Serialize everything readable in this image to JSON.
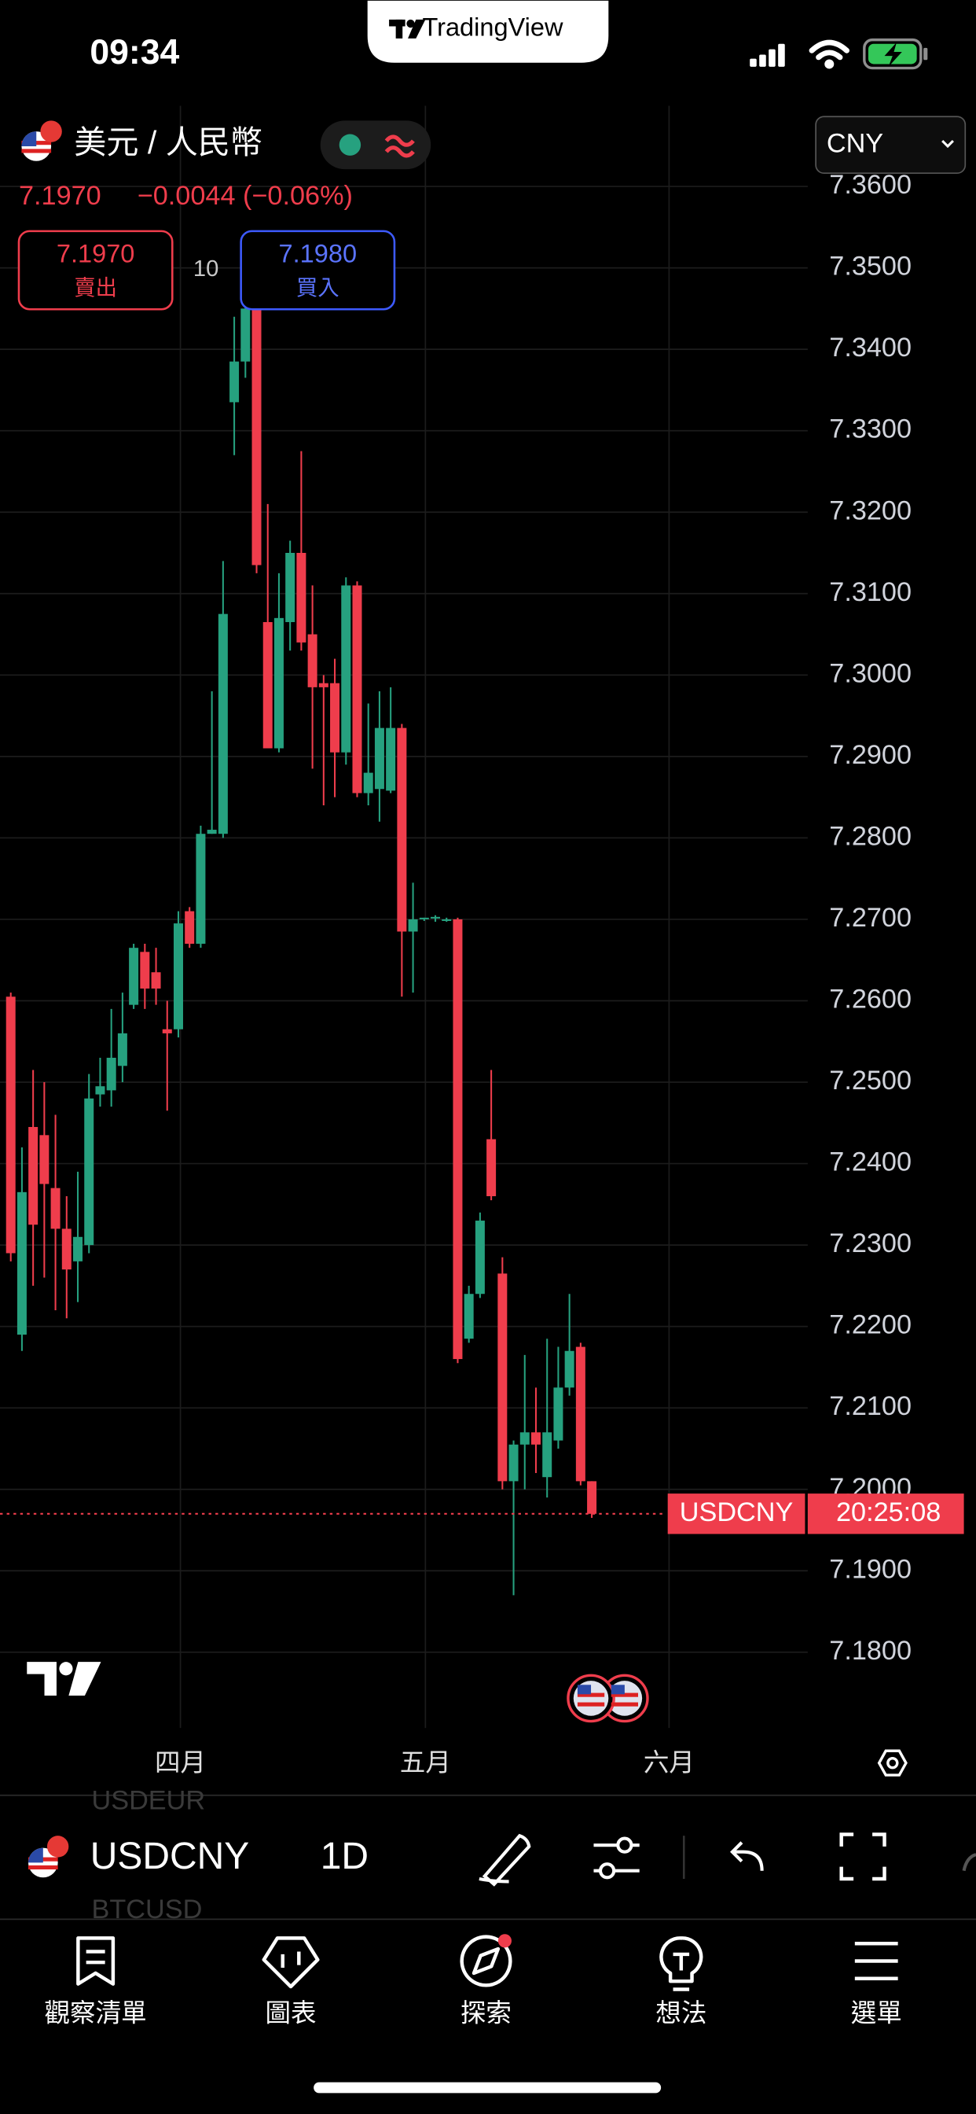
{
  "status_bar": {
    "time": "09:34",
    "app_label": "TradingView"
  },
  "header": {
    "symbol_name": "美元 / 人民幣",
    "price": "7.1970",
    "change": "−0.0044 (−0.06%)",
    "sell": {
      "price": "7.1970",
      "label": "賣出"
    },
    "spread": "10",
    "buy": {
      "price": "7.1980",
      "label": "買入"
    },
    "currency": "CNY"
  },
  "chart_data": {
    "type": "candlestick",
    "up_color": "#26a17f",
    "down_color": "#ef3d4c",
    "ylim": [
      7.1707,
      7.3699
    ],
    "yticks": [
      {
        "value": 7.18,
        "label": "7.1800"
      },
      {
        "value": 7.19,
        "label": "7.1900"
      },
      {
        "value": 7.2,
        "label": "7.2000"
      },
      {
        "value": 7.21,
        "label": "7.2100"
      },
      {
        "value": 7.22,
        "label": "7.2200"
      },
      {
        "value": 7.23,
        "label": "7.2300"
      },
      {
        "value": 7.24,
        "label": "7.2400"
      },
      {
        "value": 7.25,
        "label": "7.2500"
      },
      {
        "value": 7.26,
        "label": "7.2600"
      },
      {
        "value": 7.27,
        "label": "7.2700"
      },
      {
        "value": 7.28,
        "label": "7.2800"
      },
      {
        "value": 7.29,
        "label": "7.2900"
      },
      {
        "value": 7.3,
        "label": "7.3000"
      },
      {
        "value": 7.31,
        "label": "7.3100"
      },
      {
        "value": 7.32,
        "label": "7.3200"
      },
      {
        "value": 7.33,
        "label": "7.3300"
      },
      {
        "value": 7.34,
        "label": "7.3400"
      },
      {
        "value": 7.35,
        "label": "7.3500"
      },
      {
        "value": 7.36,
        "label": "7.3600"
      }
    ],
    "x_labels": [
      "四月",
      "五月",
      "六月"
    ],
    "open": [
      7.2605,
      7.219,
      7.2445,
      7.2435,
      7.237,
      7.232,
      7.228,
      7.23,
      7.2485,
      7.249,
      7.252,
      7.2595,
      7.266,
      7.2635,
      7.2565,
      7.2565,
      7.271,
      7.267,
      7.2805,
      7.2805,
      7.3335,
      7.3385,
      7.345,
      7.3065,
      7.291,
      7.3065,
      7.315,
      7.305,
      7.299,
      7.299,
      7.2905,
      7.311,
      7.2855,
      7.286,
      7.2858,
      7.2935,
      7.2685,
      7.27,
      7.2701,
      7.2699,
      7.27,
      7.2185,
      7.224,
      7.243,
      7.2265,
      7.201,
      7.2055,
      7.207,
      7.2015,
      7.206,
      7.2125,
      7.2175,
      7.201
    ],
    "high": [
      7.261,
      7.242,
      7.2515,
      7.25,
      7.246,
      7.236,
      7.239,
      7.251,
      7.253,
      7.259,
      7.261,
      7.267,
      7.267,
      7.2665,
      7.26,
      7.271,
      7.2715,
      7.2815,
      7.298,
      7.314,
      7.344,
      7.347,
      7.348,
      7.321,
      7.3125,
      7.3165,
      7.3275,
      7.311,
      7.3,
      7.302,
      7.312,
      7.3115,
      7.2965,
      7.298,
      7.2985,
      7.294,
      7.2745,
      7.2702,
      7.2705,
      7.2702,
      7.2702,
      7.225,
      7.234,
      7.2515,
      7.2285,
      7.206,
      7.2165,
      7.2125,
      7.2185,
      7.2175,
      7.224,
      7.218,
      7.201
    ],
    "low": [
      7.228,
      7.217,
      7.225,
      7.226,
      7.222,
      7.221,
      7.223,
      7.229,
      7.247,
      7.247,
      7.25,
      7.259,
      7.259,
      7.2595,
      7.2465,
      7.2555,
      7.2665,
      7.2665,
      7.2805,
      7.28,
      7.327,
      7.3365,
      7.3125,
      7.291,
      7.2905,
      7.303,
      7.303,
      7.2885,
      7.284,
      7.285,
      7.289,
      7.285,
      7.284,
      7.282,
      7.2855,
      7.2605,
      7.261,
      7.2698,
      7.2697,
      7.2697,
      7.2155,
      7.218,
      7.2235,
      7.2355,
      7.2,
      7.187,
      7.2,
      7.202,
      7.199,
      7.205,
      7.2115,
      7.2005,
      7.1965
    ],
    "close": [
      7.229,
      7.2365,
      7.2325,
      7.2375,
      7.232,
      7.227,
      7.231,
      7.248,
      7.2495,
      7.253,
      7.256,
      7.2665,
      7.2615,
      7.2615,
      7.256,
      7.2695,
      7.267,
      7.2805,
      7.281,
      7.3075,
      7.3385,
      7.345,
      7.3135,
      7.291,
      7.307,
      7.315,
      7.304,
      7.2985,
      7.2985,
      7.2905,
      7.311,
      7.2855,
      7.288,
      7.2935,
      7.2935,
      7.2685,
      7.27,
      7.2702,
      7.2703,
      7.27,
      7.216,
      7.224,
      7.233,
      7.236,
      7.201,
      7.2055,
      7.207,
      7.2055,
      7.207,
      7.2125,
      7.217,
      7.201,
      7.197
    ],
    "last_price_badge": {
      "symbol": "USDCNY",
      "countdown": "20:25:08"
    }
  },
  "toolbar": {
    "symbol": "USDCNY",
    "interval": "1D",
    "ghost_symbols": [
      "USDEUR",
      "BTCUSD"
    ]
  },
  "tab_bar": {
    "tabs": [
      "觀察清單",
      "圖表",
      "探索",
      "想法",
      "選單"
    ]
  }
}
